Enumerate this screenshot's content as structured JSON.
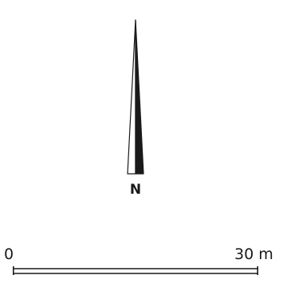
{
  "north_arrow": {
    "label": "N",
    "fill_color": "#1a1a1a",
    "outline_color": "#1a1a1a"
  },
  "scale_bar": {
    "start_label": "0",
    "end_label": "30 m",
    "start_value": 0,
    "end_value": 30,
    "unit": "m",
    "color": "#1a1a1a"
  }
}
